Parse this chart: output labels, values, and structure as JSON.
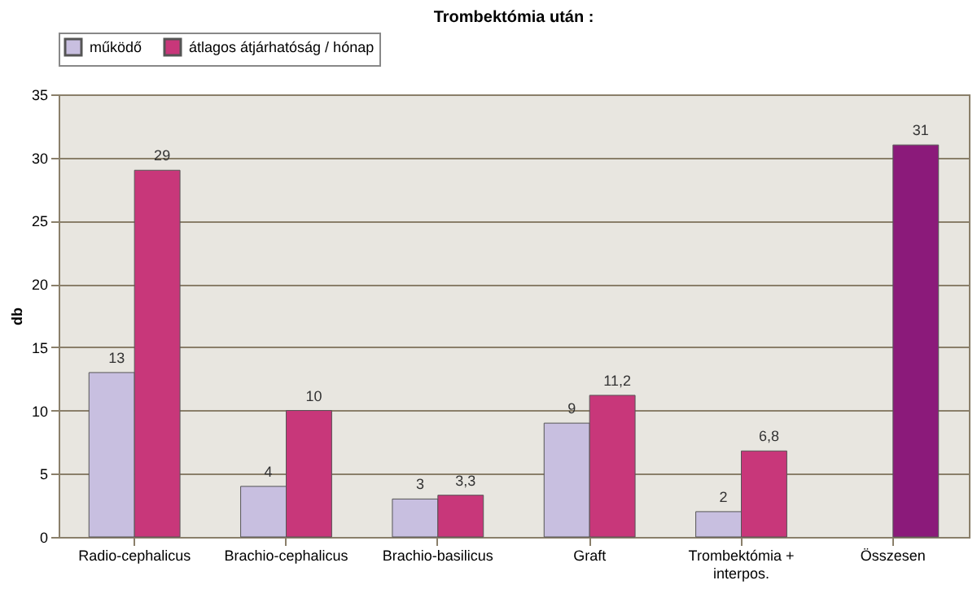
{
  "chart_data": {
    "type": "bar",
    "title": "Trombektómia után :",
    "ylabel": "db",
    "categories": [
      "Radio-cephalicus",
      "Brachio-cephalicus",
      "Brachio-basilicus",
      "Graft",
      "Trombektómia + interpos.",
      "Összesen"
    ],
    "series": [
      {
        "name": "működő",
        "color": "#c8bfe0",
        "values": [
          13,
          4,
          3,
          9,
          2,
          null
        ],
        "value_labels": [
          "13",
          "4",
          "3",
          "9",
          "2",
          null
        ]
      },
      {
        "name": "átlagos átjárhatóság / hónap",
        "color": "#c8377a",
        "colors": [
          "#c8377a",
          "#c8377a",
          "#c8377a",
          "#c8377a",
          "#c8377a",
          "#8b1a7a"
        ],
        "values": [
          29,
          10,
          3.3,
          11.2,
          6.8,
          31
        ],
        "value_labels": [
          "29",
          "10",
          "3,3",
          "11,2",
          "6,8",
          "31"
        ]
      }
    ],
    "ylim": [
      0,
      35
    ],
    "yticks": [
      0,
      5,
      10,
      15,
      20,
      25,
      30,
      35
    ],
    "grid": "y",
    "legend": "top"
  }
}
